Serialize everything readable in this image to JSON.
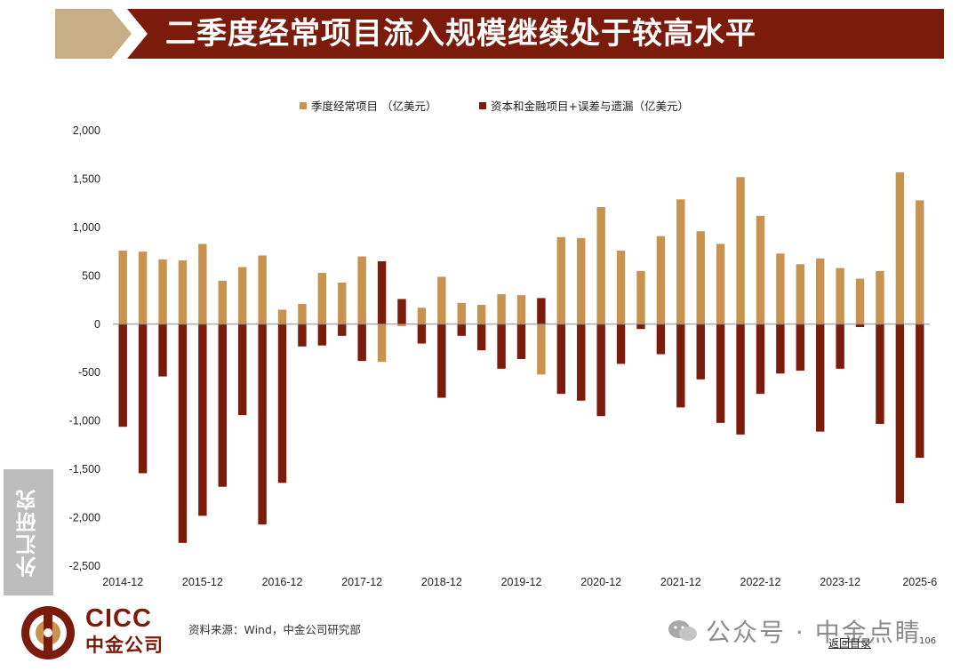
{
  "header": {
    "title": "二季度经常项目流入规模继续处于较高水平"
  },
  "side_tab": {
    "label": "外汇研究"
  },
  "footer": {
    "logo_en": "CICC",
    "logo_cn": "中金公司",
    "source": "资料来源：Wind，中金公司研究部",
    "watermark": "公众号 · 中金点睛",
    "back_link": "返回目录",
    "page_number": "106"
  },
  "colors": {
    "banner_dark": "#7a1b0c",
    "banner_light": "#c9ad86",
    "current_account": "#c8934f",
    "capital_financial": "#7a1b0c"
  },
  "chart_data": {
    "type": "bar",
    "title": "",
    "xlabel": "",
    "ylabel": "",
    "ylim": [
      -2500,
      2000
    ],
    "yticks": [
      2000,
      1500,
      1000,
      500,
      0,
      -500,
      -1000,
      -1500,
      -2000,
      -2500
    ],
    "ytick_labels": [
      "2,000",
      "1,500",
      "1,000",
      "500",
      "0",
      "-500",
      "-1,000",
      "-1,500",
      "-2,000",
      "-2,500"
    ],
    "xtick_labels": [
      "2014-12",
      "2015-12",
      "2016-12",
      "2017-12",
      "2018-12",
      "2019-12",
      "2020-12",
      "2021-12",
      "2022-12",
      "2023-12",
      "2025-6"
    ],
    "grid": false,
    "legend_position": "top-center",
    "series": [
      {
        "name": "季度经常项目 （亿美元）",
        "color": "#c8934f",
        "values": [
          760,
          750,
          670,
          660,
          830,
          450,
          590,
          710,
          150,
          210,
          530,
          430,
          700,
          -390,
          -20,
          170,
          490,
          220,
          200,
          310,
          300,
          -520,
          900,
          890,
          1210,
          760,
          550,
          910,
          1290,
          960,
          830,
          1520,
          1120,
          730,
          620,
          680,
          580,
          470,
          550,
          1570,
          1280
        ]
      },
      {
        "name": "资本和金融项目+误差与遗漏（亿美元）",
        "color": "#7a1b0c",
        "values": [
          -1060,
          -1540,
          -540,
          -2260,
          -1980,
          -1680,
          -940,
          -2070,
          -1640,
          -230,
          -220,
          -120,
          -380,
          650,
          260,
          -200,
          -760,
          -120,
          -270,
          -460,
          -360,
          270,
          -720,
          -790,
          -950,
          -410,
          -50,
          -310,
          -860,
          -570,
          -1020,
          -1140,
          -720,
          -510,
          -480,
          -1110,
          -460,
          -30,
          -1030,
          -1850,
          -1380
        ]
      }
    ]
  }
}
